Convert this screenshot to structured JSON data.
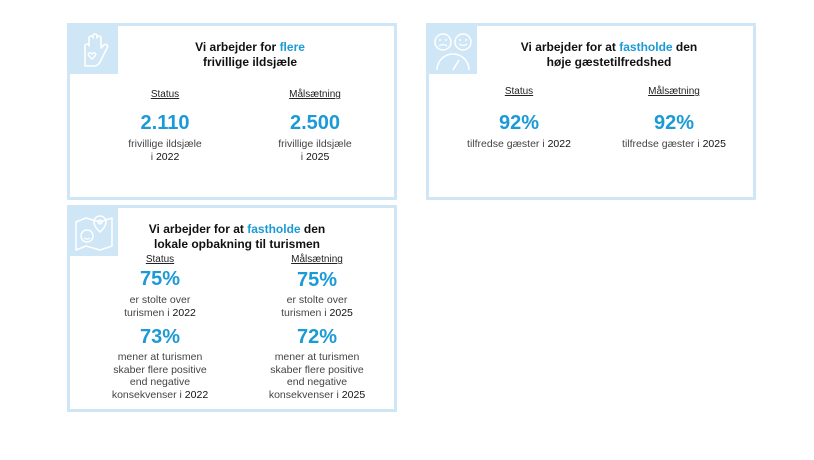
{
  "colors": {
    "accent": "#1b9ad6",
    "card_border": "#cfe6f6"
  },
  "card1": {
    "icon": "hand-heart-icon",
    "title_pre": "Vi arbejder for ",
    "title_hl": "flere",
    "title_line2": "frivillige ildsjæle",
    "status_label": "Status",
    "goal_label": "Målsætning",
    "status_value": "2.110",
    "status_desc1": "frivillige ildsjæle",
    "status_desc2_pre": "i ",
    "status_year": "2022",
    "goal_value": "2.500",
    "goal_desc1": "frivillige ildsjæle",
    "goal_desc2_pre": "i ",
    "goal_year": "2025"
  },
  "card2": {
    "icon": "sad-happy-faces-gauge-icon",
    "title_pre": "Vi arbejder for at ",
    "title_hl": "fastholde",
    "title_post": " den",
    "title_line2": "høje gæstetilfredshed",
    "status_label": "Status",
    "goal_label": "Målsætning",
    "status_value": "92%",
    "status_desc": "tilfredse gæster i ",
    "status_year": "2022",
    "goal_value": "92%",
    "goal_desc": "tilfredse gæster i ",
    "goal_year": "2025"
  },
  "card3": {
    "icon": "map-location-smiley-icon",
    "title_pre": "Vi arbejder for at ",
    "title_hl": "fastholde",
    "title_post": " den",
    "title_line2": "lokale opbakning til turismen",
    "status_label": "Status",
    "goal_label": "Målsætning",
    "row1_status_value": "75%",
    "row1_status_desc1": "er stolte over",
    "row1_status_desc2": "turismen i ",
    "row1_status_year": "2022",
    "row1_goal_value": "75%",
    "row1_goal_desc1": "er stolte over",
    "row1_goal_desc2": "turismen i ",
    "row1_goal_year": "2025",
    "row2_status_value": "73%",
    "row2_status_desc1": "mener at turismen",
    "row2_status_desc2": "skaber flere positive",
    "row2_status_desc3": "end negative",
    "row2_status_desc4": "konsekvenser i ",
    "row2_status_year": "2022",
    "row2_goal_value": "72%",
    "row2_goal_desc1": "mener at turismen",
    "row2_goal_desc2": "skaber flere positive",
    "row2_goal_desc3": "end negative",
    "row2_goal_desc4": "konsekvenser i ",
    "row2_goal_year": "2025"
  }
}
